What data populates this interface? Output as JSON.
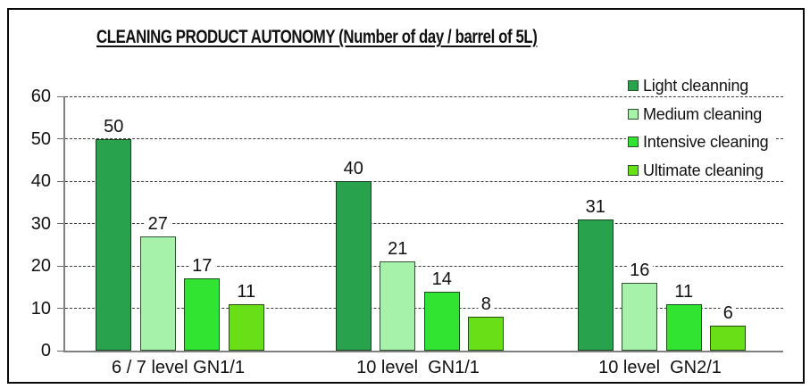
{
  "title": "CLEANING PRODUCT AUTONOMY (Number of day / barrel of 5L)",
  "chart_data": {
    "type": "bar",
    "title": "CLEANING PRODUCT AUTONOMY (Number of day / barrel of 5L)",
    "categories": [
      "6 / 7 level GN1/1",
      "10 level  GN1/1",
      "10 level  GN2/1"
    ],
    "series": [
      {
        "name": "Light cleanning",
        "color": "#28A24D",
        "values": [
          50,
          40,
          31
        ]
      },
      {
        "name": "Medium cleaning",
        "color": "#A6F2AB",
        "values": [
          27,
          21,
          16
        ]
      },
      {
        "name": "Intensive cleaning",
        "color": "#32E432",
        "values": [
          17,
          14,
          11
        ]
      },
      {
        "name": "Ultimate cleaning",
        "color": "#68DF16",
        "values": [
          11,
          8,
          6
        ]
      }
    ],
    "ylim": [
      0,
      60
    ],
    "yticks": [
      0,
      10,
      20,
      30,
      40,
      50,
      60
    ],
    "xlabel": "",
    "ylabel": "",
    "grid": "horizontal-dashed",
    "legend_position": "top-right",
    "value_labels": true
  },
  "styles": {
    "axis_color": "#808080",
    "grid_color": "#3a3a3a",
    "frame_color": "#0a0a0a",
    "text_color": "#111111"
  }
}
